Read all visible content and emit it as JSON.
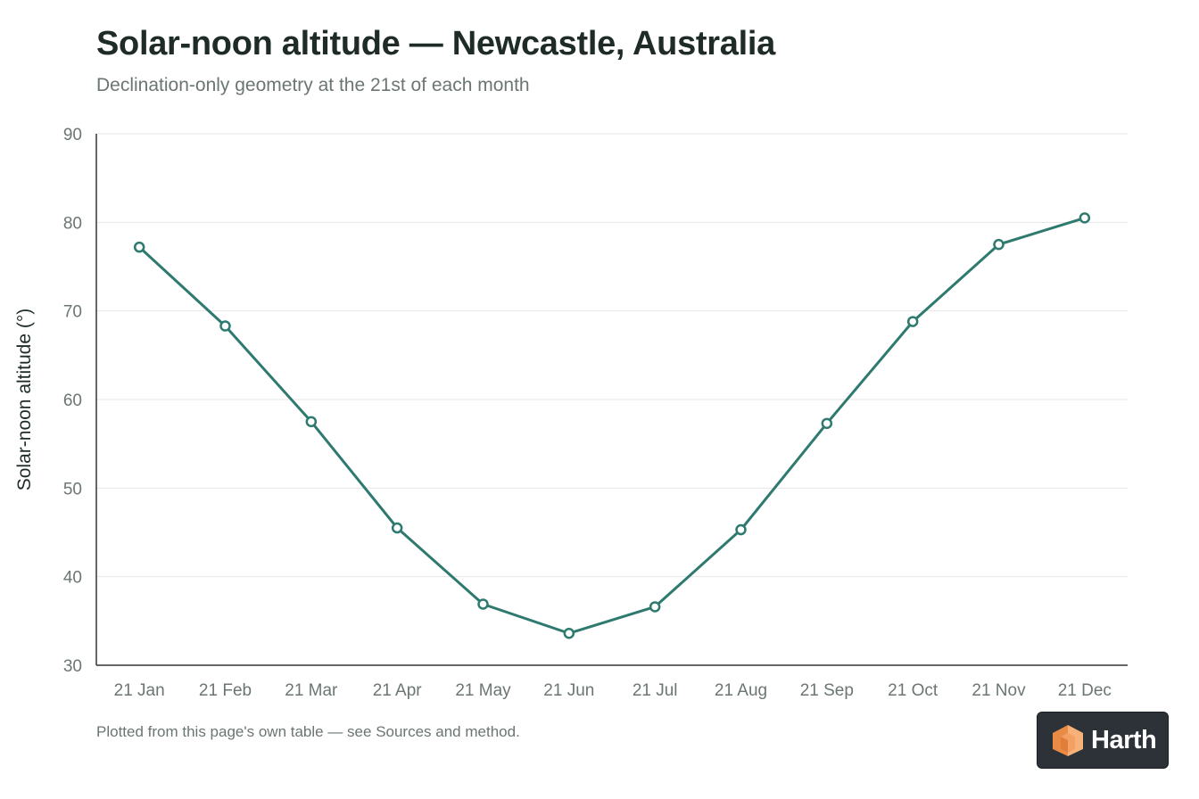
{
  "header": {
    "title": "Solar-noon altitude — Newcastle, Australia",
    "subtitle": "Declination-only geometry at the 21st of each month"
  },
  "footer": {
    "note": "Plotted from this page's own table — see Sources and method."
  },
  "brand": {
    "name": "Harth",
    "logo_icon": "orange-cube-icon",
    "logo_colors": [
      "#f7b27a",
      "#e98a45",
      "#f3a064"
    ]
  },
  "chart_data": {
    "type": "line",
    "title": "Solar-noon altitude — Newcastle, Australia",
    "subtitle": "Declination-only geometry at the 21st of each month",
    "xlabel": "",
    "ylabel": "Solar-noon altitude (°)",
    "categories": [
      "21 Jan",
      "21 Feb",
      "21 Mar",
      "21 Apr",
      "21 May",
      "21 Jun",
      "21 Jul",
      "21 Aug",
      "21 Sep",
      "21 Oct",
      "21 Nov",
      "21 Dec"
    ],
    "series": [
      {
        "values": [
          77.2,
          68.3,
          57.5,
          45.5,
          36.9,
          33.6,
          36.6,
          45.3,
          57.3,
          68.8,
          77.5,
          80.5
        ]
      }
    ],
    "ylim": [
      30,
      90
    ],
    "yticks": [
      30,
      40,
      50,
      60,
      70,
      80,
      90
    ],
    "grid": true,
    "legend": "none",
    "colors": {
      "line": "#2e7a6f",
      "marker_fill": "#ffffff",
      "grid": "#e6e6e6",
      "axis": "#333333",
      "tick_label": "#6b7672",
      "axis_label": "#1e2b26"
    }
  }
}
